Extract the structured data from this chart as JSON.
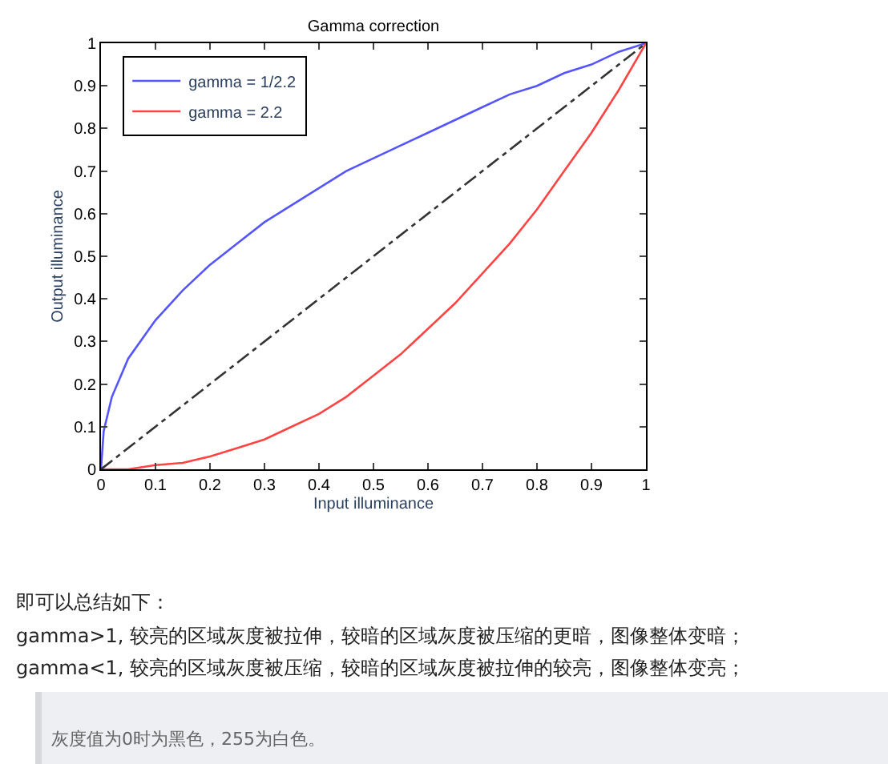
{
  "chart_data": {
    "type": "line",
    "title": "Gamma correction",
    "xlabel": "Input illuminance",
    "ylabel": "Output illuminance",
    "x": [
      0,
      0.005,
      0.02,
      0.05,
      0.1,
      0.15,
      0.2,
      0.25,
      0.3,
      0.35,
      0.4,
      0.45,
      0.5,
      0.55,
      0.6,
      0.65,
      0.7,
      0.75,
      0.8,
      0.85,
      0.9,
      0.95,
      1
    ],
    "series": [
      {
        "name": "gamma = 1/2.2",
        "color": "#5555ff",
        "values": [
          0,
          0.09,
          0.17,
          0.26,
          0.35,
          0.42,
          0.48,
          0.53,
          0.58,
          0.62,
          0.66,
          0.7,
          0.73,
          0.76,
          0.79,
          0.82,
          0.85,
          0.88,
          0.9,
          0.93,
          0.95,
          0.98,
          1
        ]
      },
      {
        "name": "gamma = 2.2",
        "color": "#ff4444",
        "values": [
          0,
          0,
          0,
          0,
          0.01,
          0.015,
          0.03,
          0.05,
          0.07,
          0.1,
          0.13,
          0.17,
          0.22,
          0.27,
          0.33,
          0.39,
          0.46,
          0.53,
          0.61,
          0.7,
          0.79,
          0.89,
          1
        ]
      },
      {
        "color": "#333333",
        "x": [
          0,
          1
        ],
        "values": [
          0,
          1
        ],
        "line_style": "dashed"
      }
    ],
    "xlim": [
      0,
      1
    ],
    "ylim": [
      0,
      1
    ],
    "xticks": [
      0,
      0.1,
      0.2,
      0.3,
      0.4,
      0.5,
      0.6,
      0.7,
      0.8,
      0.9,
      1
    ],
    "yticks": [
      0,
      0.1,
      0.2,
      0.3,
      0.4,
      0.5,
      0.6,
      0.7,
      0.8,
      0.9,
      1
    ],
    "legend": "top left",
    "marker": "none",
    "line_style": "solid",
    "annotations": [
      "即可以总结如下：",
      "gamma>1, 较亮的区域灰度被拉伸，较暗的区域灰度被压缩的更暗，图像整体变暗；",
      "gamma<1, 较亮的区域灰度被压缩，较暗的区域灰度被拉伸的较亮，图像整体变亮；",
      "灰度值为0时为黑色，255为白色。"
    ]
  }
}
